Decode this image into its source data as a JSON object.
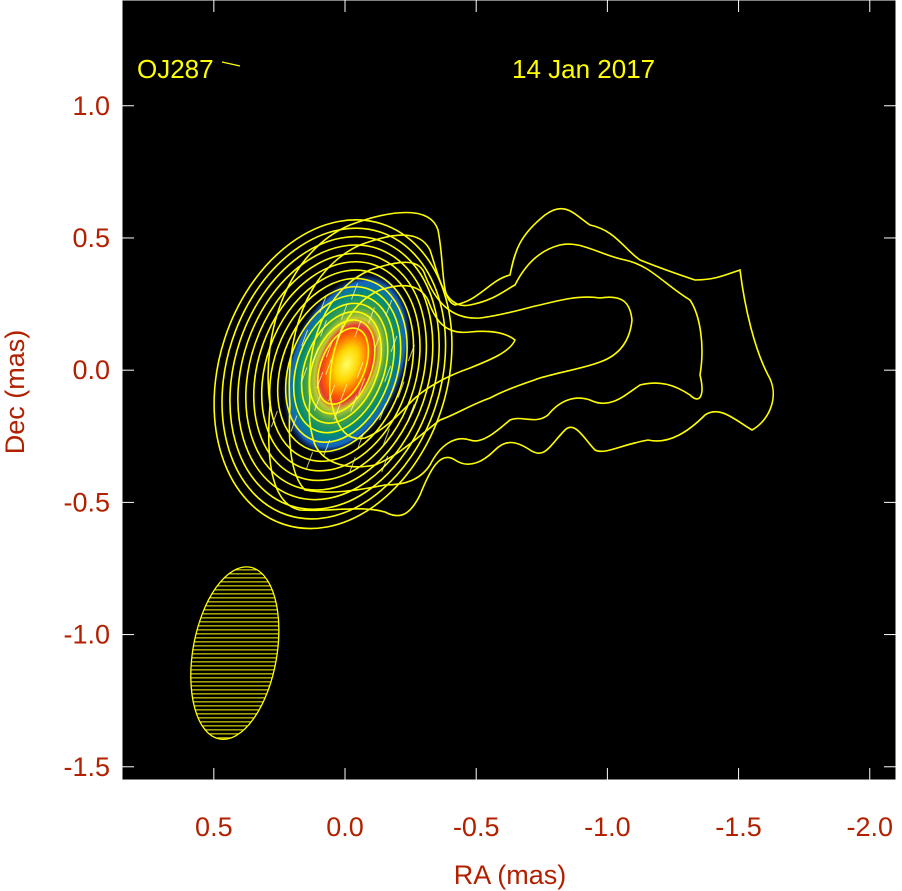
{
  "chart_data": {
    "type": "contour",
    "source_label": "OJ287",
    "date_label": "14 Jan 2017",
    "xlabel": "RA (mas)",
    "ylabel": "Dec (mas)",
    "xlim": [
      0.85,
      -2.1
    ],
    "ylim": [
      -1.55,
      1.4
    ],
    "xticks": [
      0.5,
      0.0,
      -0.5,
      -1.0,
      -1.5,
      -2.0
    ],
    "xtick_labels": [
      "0.5",
      "0.0",
      "-0.5",
      "-1.0",
      "-1.5",
      "-2.0"
    ],
    "yticks": [
      1.0,
      0.5,
      0.0,
      -0.5,
      -1.0,
      -1.5
    ],
    "ytick_labels": [
      "1.0",
      "0.5",
      "0.0",
      "-0.5",
      "-1.0",
      "-1.5"
    ],
    "core": {
      "ra": 0.0,
      "dec": 0.0
    },
    "jet": {
      "extent_ra": [
        0.0,
        -1.65
      ],
      "extent_dec": [
        -0.55,
        0.62
      ]
    },
    "beam": {
      "ra": 0.42,
      "dec": -1.07,
      "major_mas": 0.33,
      "minor_mas": 0.16,
      "pa_deg": 10
    },
    "colors": {
      "background": "#000000",
      "contour": "#ffff00",
      "label": "#ffff00",
      "axis_text": "#b22000",
      "colormap": [
        "#1a237e",
        "#1565c0",
        "#00897b",
        "#7cb342",
        "#ffeb3b",
        "#ff9800",
        "#e53935"
      ]
    }
  }
}
